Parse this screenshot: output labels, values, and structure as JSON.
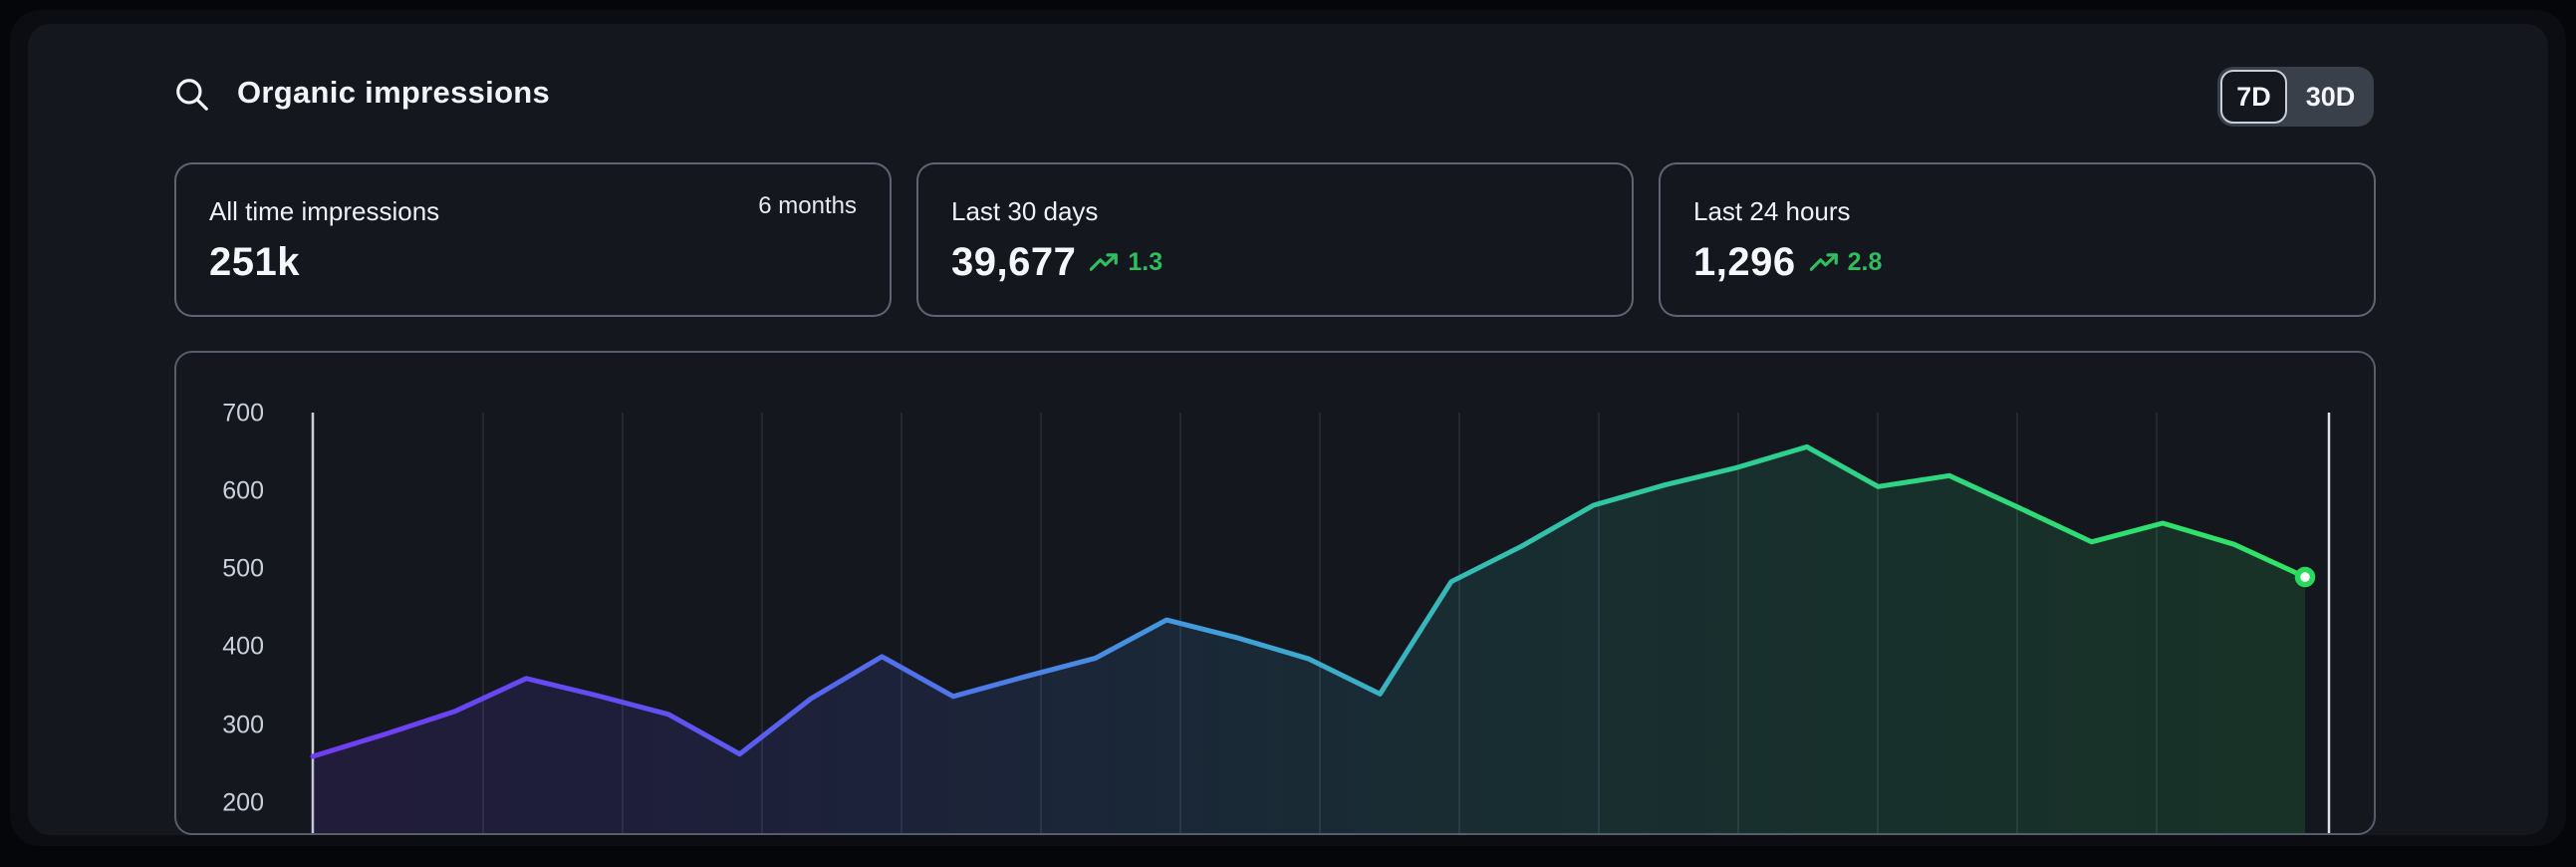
{
  "header": {
    "title": "Organic impressions",
    "range_toggle": {
      "options": [
        "7D",
        "30D"
      ],
      "selected": "7D"
    }
  },
  "cards": [
    {
      "label": "All time impressions",
      "value": "251k",
      "period_note": "6 months"
    },
    {
      "label": "Last 30 days",
      "value": "39,677",
      "delta": "1.3",
      "trend": "up"
    },
    {
      "label": "Last 24 hours",
      "value": "1,296",
      "delta": "2.8",
      "trend": "up"
    }
  ],
  "colors": {
    "panel_bg": "#14171e",
    "frame_bg": "#0b0d12",
    "page_bg": "#05060a",
    "card_border": "#9aa6b8",
    "text_primary": "#f2f4f8",
    "tick_label": "#c9d1dc",
    "delta_green": "#30bd5d",
    "line_start_violet": "#713df2",
    "line_mid_blue": "#4e79e9",
    "line_teal": "#35bcb4",
    "line_end_green": "#31e563",
    "end_dot_ring": "#2bd95f",
    "end_dot_fill": "#ffffff"
  },
  "chart_data": {
    "type": "area",
    "title": "",
    "xlabel": "",
    "ylabel": "",
    "y_ticks": [
      700,
      600,
      500,
      400,
      300,
      200
    ],
    "ylim": [
      200,
      700
    ],
    "grid": "vertical-only",
    "legend": "none",
    "series": [
      {
        "name": "Organic impressions",
        "values": [
          260,
          288,
          318,
          360,
          338,
          314,
          263,
          334,
          388,
          337,
          362,
          386,
          435,
          412,
          385,
          340,
          484,
          530,
          582,
          608,
          630,
          657,
          606,
          620,
          578,
          535,
          559,
          532,
          490
        ]
      }
    ],
    "end_point_value": 490,
    "gradient_stops": [
      {
        "offset": 0.0,
        "color": "#713df2"
      },
      {
        "offset": 0.17,
        "color": "#6150f3"
      },
      {
        "offset": 0.33,
        "color": "#4e79e9"
      },
      {
        "offset": 0.46,
        "color": "#41a0da"
      },
      {
        "offset": 0.58,
        "color": "#35bcb4"
      },
      {
        "offset": 0.72,
        "color": "#2ecf92"
      },
      {
        "offset": 0.88,
        "color": "#2fdc74"
      },
      {
        "offset": 1.0,
        "color": "#31e563"
      }
    ]
  }
}
